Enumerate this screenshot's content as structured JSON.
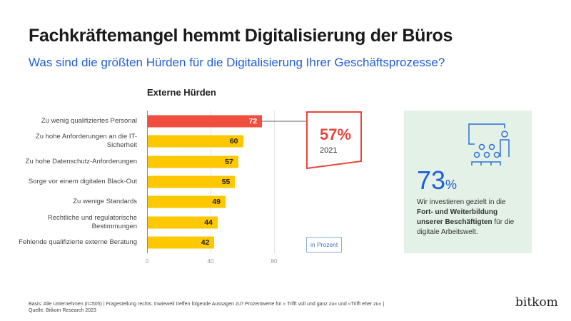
{
  "header": {
    "title": "Fachkräftemangel hemmt Digitalisierung der Büros",
    "subtitle": "Was sind die größten Hürden für die Digitalisierung Ihrer Geschäftsprozesse?"
  },
  "chart_data": {
    "type": "bar",
    "orientation": "horizontal",
    "title": "Externe Hürden",
    "categories": [
      "Zu wenig qualifiziertes Personal",
      "Zu hohe Anforderungen an die IT-Sicherheit",
      "Zu hohe Datenschutz-Anforderungen",
      "Sorge vor einem digitalen Black-Out",
      "Zu wenige Standards",
      "Rechtliche und regulatorische Bestimmungen",
      "Fehlende qualifizierte externe Beratung"
    ],
    "values": [
      72,
      60,
      57,
      55,
      49,
      44,
      42
    ],
    "xlim": [
      0,
      80
    ],
    "xticks": [
      "0",
      "40",
      "80"
    ],
    "grid": true,
    "colors": {
      "highlight": "#f04e3e",
      "default": "#fdc800"
    },
    "unit_note": "in Prozent",
    "annotation": {
      "value": "57%",
      "year": "2021"
    }
  },
  "infobox": {
    "value": "73",
    "unit": "%",
    "text_pre": "Wir investieren gezielt in die ",
    "text_bold": "Fort- und Weiterbildung unserer Beschäftigten",
    "text_post": " für die digitale Arbeitswelt.",
    "icon": "presentation-audience-icon",
    "bg": "#e3f1e6"
  },
  "footer": {
    "line1": "Basis: Alle Unternehmen (n=505) | Fragestellung rechts: Inwieweit treffen folgende Aussagen zu? Prozentwerte für » Trifft voll und ganz zu« und »Trifft eher zu« |",
    "line2": "Quelle: Bitkom Research 2023",
    "logo": "bitkom"
  }
}
